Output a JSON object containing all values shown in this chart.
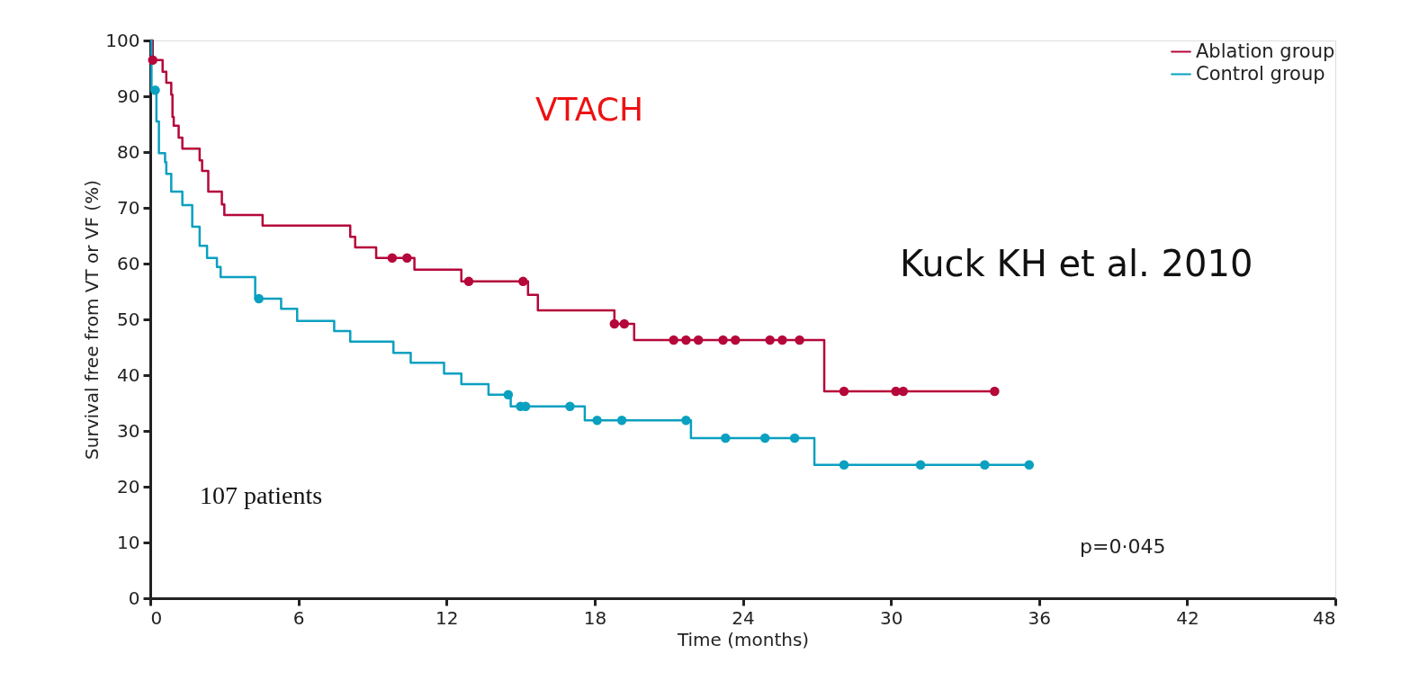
{
  "chart_data": {
    "type": "step",
    "xlabel": "Time (months)",
    "ylabel": "Survival free from VT or VF (%)",
    "xlim": [
      0,
      48
    ],
    "xticks": [
      0,
      6,
      12,
      18,
      24,
      30,
      36,
      42,
      48
    ],
    "ylim": [
      0,
      100
    ],
    "yticks": [
      0,
      10,
      20,
      30,
      40,
      50,
      60,
      70,
      80,
      90,
      100
    ],
    "grid": false,
    "legend": "top right",
    "line_style": "solid",
    "marker": "none",
    "annotations": [
      "VTACH",
      "Kuck KH et al. 2010",
      "107 patients",
      "p=0·045"
    ],
    "series": [
      {
        "name": "Ablation group",
        "color": "#b5073a",
        "x": [
          0,
          0.1,
          0.5,
          0.65,
          0.85,
          0.9,
          0.95,
          1.15,
          1.3,
          2.0,
          2.1,
          2.35,
          2.9,
          3.0,
          4.55,
          8.1,
          8.3,
          9.15,
          10.7,
          12.6,
          15.3,
          15.7,
          18.8,
          19.6,
          27.3,
          34.2
        ],
        "values": [
          100,
          96.5,
          94.4,
          92.4,
          90.3,
          86.3,
          84.7,
          82.6,
          80.6,
          78.5,
          76.6,
          72.9,
          70.6,
          68.7,
          66.8,
          64.8,
          62.9,
          61.0,
          58.9,
          56.8,
          54.4,
          51.6,
          49.2,
          46.3,
          37.1,
          37.1
        ]
      },
      {
        "name": "Control group",
        "color": "#0aa0c0",
        "x": [
          0,
          0.05,
          0.25,
          0.35,
          0.6,
          0.65,
          0.85,
          1.3,
          1.7,
          2.0,
          2.3,
          2.7,
          2.85,
          4.25,
          5.3,
          5.95,
          7.45,
          8.1,
          9.85,
          10.55,
          11.9,
          12.6,
          13.7,
          14.6,
          17.6,
          21.9,
          26.9,
          35.6
        ],
        "values": [
          100,
          91.1,
          85.5,
          79.8,
          78.2,
          76.1,
          72.9,
          70.5,
          66.6,
          63.2,
          61.0,
          59.4,
          57.6,
          53.7,
          51.9,
          49.7,
          47.9,
          46.0,
          44.0,
          42.2,
          40.3,
          38.4,
          36.5,
          34.4,
          31.9,
          28.7,
          23.9,
          23.9
        ]
      },
      {
        "color": "#b5073a",
        "type": "scatter",
        "marker": "circle",
        "x": [
          0.1,
          9.8,
          10.4,
          12.9,
          15.1,
          18.8,
          19.2,
          21.2,
          21.7,
          22.2,
          23.2,
          23.7,
          25.1,
          25.6,
          26.3,
          28.1,
          30.2,
          30.5,
          34.2
        ],
        "values": [
          96.5,
          61.0,
          61.0,
          56.8,
          56.8,
          49.2,
          49.2,
          46.3,
          46.3,
          46.3,
          46.3,
          46.3,
          46.3,
          46.3,
          46.3,
          37.1,
          37.1,
          37.1,
          37.1
        ]
      },
      {
        "color": "#0aa0c0",
        "type": "scatter",
        "marker": "circle",
        "x": [
          0.2,
          4.4,
          14.5,
          15.0,
          15.2,
          17.0,
          18.1,
          19.1,
          21.7,
          23.3,
          24.9,
          26.1,
          28.1,
          31.2,
          33.8,
          35.6
        ],
        "values": [
          91.1,
          53.7,
          36.5,
          34.4,
          34.4,
          34.4,
          31.9,
          31.9,
          31.9,
          28.7,
          28.7,
          28.7,
          23.9,
          23.9,
          23.9,
          23.9
        ]
      }
    ]
  }
}
